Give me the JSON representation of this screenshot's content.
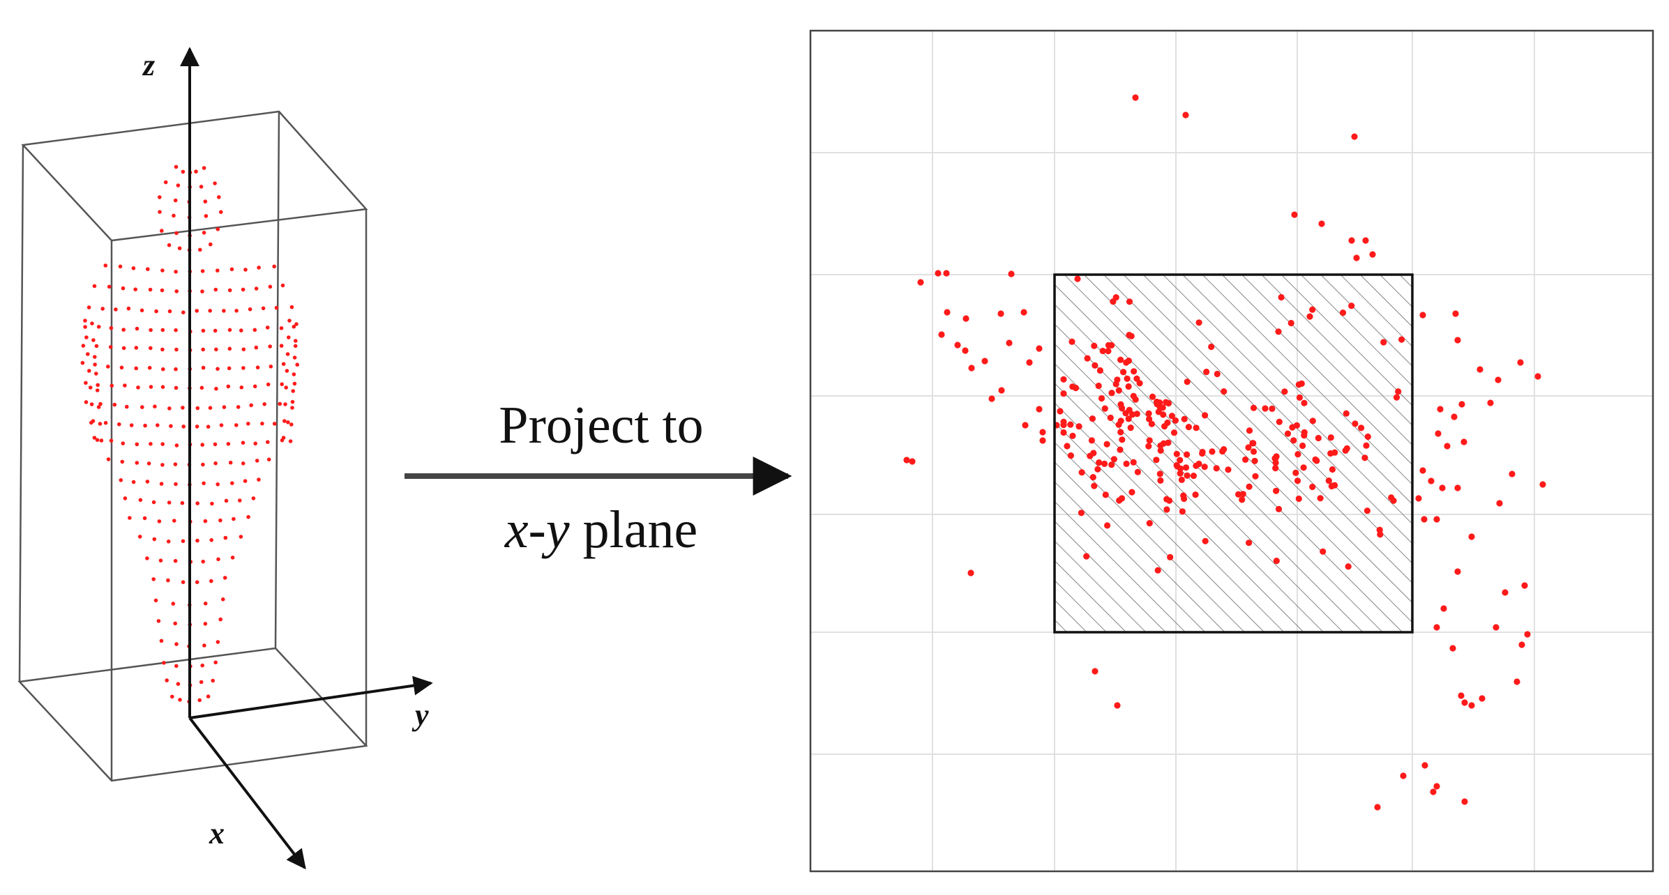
{
  "figure": {
    "axes_3d": {
      "z_label": "z",
      "y_label": "y",
      "x_label": "x"
    },
    "arrow": {
      "line1": "Project to",
      "line2_x": "x",
      "line2_dash": "-",
      "line2_y": "y",
      "line2_rest": " plane"
    }
  },
  "colors": {
    "points": "#ff1a1a",
    "frame": "#555555",
    "grid": "#e0e0e0",
    "axes": "#111111",
    "hatch": "#666666"
  }
}
